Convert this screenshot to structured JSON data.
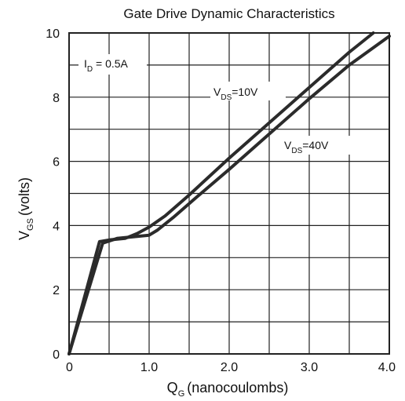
{
  "chart_data": {
    "type": "line",
    "title": "Gate Drive Dynamic Characteristics",
    "xlabel": {
      "main": "Q",
      "sub": "G",
      "rest": "(nanocoulombs)"
    },
    "ylabel": {
      "main": "V",
      "sub": "GS",
      "rest": "(volts)"
    },
    "xlim": [
      0,
      4.0
    ],
    "ylim": [
      0,
      10
    ],
    "xticks": [
      {
        "value": 0,
        "label": "0"
      },
      {
        "value": 1,
        "label": "1.0"
      },
      {
        "value": 2,
        "label": "2.0"
      },
      {
        "value": 3,
        "label": "3.0"
      },
      {
        "value": 4,
        "label": "4.0"
      }
    ],
    "yticks": [
      {
        "value": 0,
        "label": "0"
      },
      {
        "value": 2,
        "label": "2"
      },
      {
        "value": 4,
        "label": "4"
      },
      {
        "value": 6,
        "label": "6"
      },
      {
        "value": 8,
        "label": "8"
      },
      {
        "value": 10,
        "label": "10"
      }
    ],
    "grid": true,
    "grid_x_step": 0.5,
    "grid_y_step": 1,
    "series": [
      {
        "name": {
          "main": "V",
          "sub": "DS",
          "rest": "=10V"
        },
        "color": "#2b2b2b",
        "x": [
          0,
          0.38,
          0.5,
          0.7,
          0.85,
          1.0,
          1.2,
          1.5,
          2.0,
          2.5,
          3.0,
          3.5,
          3.8
        ],
        "y": [
          0,
          3.5,
          3.55,
          3.6,
          3.75,
          3.95,
          4.3,
          4.95,
          6.1,
          7.2,
          8.3,
          9.4,
          10.0
        ]
      },
      {
        "name": {
          "main": "V",
          "sub": "DS",
          "rest": "=40V"
        },
        "color": "#2b2b2b",
        "x": [
          0,
          0.42,
          0.6,
          0.8,
          1.0,
          1.1,
          1.3,
          1.6,
          2.0,
          2.5,
          3.0,
          3.5,
          4.0
        ],
        "y": [
          0,
          3.45,
          3.6,
          3.65,
          3.7,
          3.85,
          4.25,
          4.9,
          5.75,
          6.85,
          7.95,
          9.0,
          9.9
        ]
      }
    ],
    "annotation": {
      "main": "I",
      "sub": "D",
      "rest": " = 0.5A"
    }
  }
}
